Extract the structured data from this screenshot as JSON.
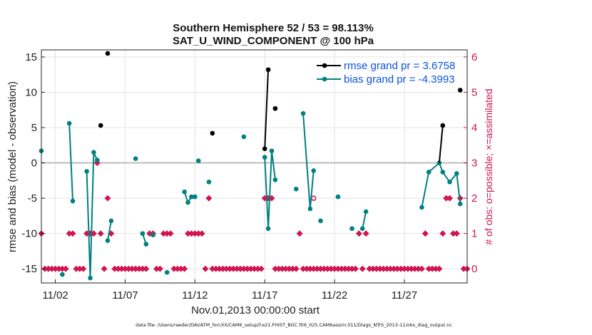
{
  "chart_data": {
    "type": "line",
    "title": "Southern Hemisphere 52 / 53 = 98.113%",
    "subtitle": "SAT_U_WIND_COMPONENT @ 100 hPa",
    "xlabel": "Nov.01,2013 00:00:00 start",
    "ylabel": "rmse and bias (model - observation)",
    "y2label": "# of obs: o=possible; ×=assimilated",
    "xlim": [
      0.5,
      31.0
    ],
    "ylim": [
      -17,
      16
    ],
    "y2lim": [
      -0.4,
      6.2
    ],
    "x_ticks": [
      1.5,
      6.5,
      11.5,
      16.5,
      21.5,
      26.5
    ],
    "x_tick_labels": [
      "11/02",
      "11/07",
      "11/12",
      "11/17",
      "11/22",
      "11/27"
    ],
    "y_ticks": [
      -15,
      -10,
      -5,
      0,
      5,
      10,
      15
    ],
    "y2_ticks": [
      0,
      1,
      2,
      3,
      4,
      5,
      6
    ],
    "grid": true,
    "legend_position": "top-right",
    "zero_line": 0,
    "footer": "data file: /Users/raeder/DAI/ATM_forcXX/CAM6_setup/f.e21.FHIST_BGC.f09_025.CAM6assim.011/Diags_NTrS_2013-11/obs_diag_output.nc",
    "colors": {
      "rmse": "#000000",
      "bias": "#008080",
      "obs": "#d1154f",
      "grid": "#e4e4e4",
      "zero": "#bdbdbd"
    },
    "series": [
      {
        "name": "rmse grand pr = 3.6758",
        "color": "#000000",
        "points": [
          [
            4.75,
            5.3
          ],
          [
            5.25,
            15.5
          ],
          [
            12.75,
            4.2
          ],
          [
            16.5,
            2.0
          ],
          [
            16.75,
            13.2
          ],
          [
            17.25,
            7.7
          ],
          [
            29.25,
            5.3
          ],
          [
            30.5,
            10.3
          ]
        ],
        "lines": [
          [
            [
              16.5,
              2.0
            ],
            [
              16.75,
              13.2
            ]
          ],
          [
            [
              29.0,
              0.0
            ],
            [
              29.25,
              5.3
            ]
          ]
        ]
      },
      {
        "name": "bias grand pr = -4.3993",
        "color": "#008080",
        "points": [
          [
            0.5,
            1.7
          ],
          [
            2.0,
            -15.8
          ],
          [
            2.5,
            5.6
          ],
          [
            2.75,
            -5.4
          ],
          [
            3.75,
            -1.2
          ],
          [
            4.0,
            -16.3
          ],
          [
            4.25,
            1.5
          ],
          [
            4.5,
            0.4
          ],
          [
            5.25,
            -11.0
          ],
          [
            5.5,
            -8.2
          ],
          [
            7.25,
            0.6
          ],
          [
            7.75,
            -10.0
          ],
          [
            8.0,
            -11.5
          ],
          [
            8.5,
            -10.2
          ],
          [
            9.5,
            -15.5
          ],
          [
            10.75,
            -4.1
          ],
          [
            11.0,
            -5.6
          ],
          [
            11.25,
            -4.8
          ],
          [
            11.5,
            -4.8
          ],
          [
            11.75,
            0.3
          ],
          [
            12.5,
            -2.7
          ],
          [
            15.0,
            3.7
          ],
          [
            16.5,
            0.8
          ],
          [
            16.75,
            -9.3
          ],
          [
            17.0,
            1.7
          ],
          [
            17.25,
            -2.4
          ],
          [
            18.75,
            -3.7
          ],
          [
            19.25,
            7.0
          ],
          [
            19.75,
            -6.5
          ],
          [
            20.0,
            -1.1
          ],
          [
            20.5,
            -8.2
          ],
          [
            21.75,
            -4.8
          ],
          [
            22.75,
            -9.3
          ],
          [
            23.5,
            -9.3
          ],
          [
            23.75,
            -6.9
          ],
          [
            27.75,
            -6.3
          ],
          [
            28.25,
            -1.3
          ],
          [
            29.0,
            0.0
          ],
          [
            29.25,
            -1.3
          ],
          [
            29.75,
            -2.7
          ],
          [
            30.25,
            -1.5
          ],
          [
            30.5,
            -5.8
          ]
        ],
        "lines": [
          [
            [
              2.5,
              5.6
            ],
            [
              2.75,
              -5.4
            ]
          ],
          [
            [
              3.75,
              -1.2
            ],
            [
              4.0,
              -16.3
            ],
            [
              4.25,
              1.5
            ],
            [
              4.5,
              0.4
            ]
          ],
          [
            [
              5.25,
              -11.0
            ],
            [
              5.5,
              -8.2
            ]
          ],
          [
            [
              7.75,
              -10.0
            ],
            [
              8.0,
              -11.5
            ]
          ],
          [
            [
              10.75,
              -4.1
            ],
            [
              11.0,
              -5.6
            ],
            [
              11.25,
              -4.8
            ]
          ],
          [
            [
              16.5,
              0.8
            ],
            [
              16.75,
              -9.3
            ],
            [
              17.0,
              1.7
            ],
            [
              17.25,
              -2.4
            ]
          ],
          [
            [
              19.25,
              7.0
            ],
            [
              19.75,
              -6.5
            ],
            [
              20.0,
              -1.1
            ]
          ],
          [
            [
              23.5,
              -9.3
            ],
            [
              23.75,
              -6.9
            ]
          ],
          [
            [
              27.75,
              -6.3
            ],
            [
              28.25,
              -1.3
            ],
            [
              29.0,
              0.0
            ],
            [
              29.25,
              -1.3
            ],
            [
              29.75,
              -2.7
            ],
            [
              30.25,
              -1.5
            ],
            [
              30.5,
              -5.8
            ]
          ]
        ]
      },
      {
        "name": "assimilated obs count",
        "axis": "right",
        "marker": "diamond",
        "color": "#d1154f",
        "x": [
          0.5,
          0.75,
          1.0,
          1.25,
          1.5,
          1.75,
          2.0,
          2.25,
          2.5,
          2.75,
          3.0,
          3.25,
          3.5,
          3.75,
          4.0,
          4.25,
          4.5,
          4.75,
          5.0,
          5.25,
          5.5,
          5.75,
          6.0,
          6.25,
          6.5,
          6.75,
          7.0,
          7.25,
          7.5,
          7.75,
          8.0,
          8.25,
          8.5,
          8.75,
          9.0,
          9.25,
          9.5,
          9.75,
          10.0,
          10.25,
          10.5,
          10.75,
          11.0,
          11.25,
          11.5,
          11.75,
          12.0,
          12.25,
          12.5,
          12.75,
          13.0,
          13.25,
          13.5,
          13.75,
          14.0,
          14.25,
          14.5,
          14.75,
          15.0,
          15.25,
          15.5,
          15.75,
          16.0,
          16.25,
          16.5,
          16.75,
          17.0,
          17.25,
          17.5,
          17.75,
          18.0,
          18.25,
          18.5,
          18.75,
          19.0,
          19.25,
          19.5,
          19.75,
          20.0,
          20.25,
          20.5,
          20.75,
          21.0,
          21.25,
          21.5,
          21.75,
          22.0,
          22.25,
          22.5,
          22.75,
          23.0,
          23.25,
          23.5,
          23.75,
          24.0,
          24.25,
          24.5,
          24.75,
          25.0,
          25.25,
          25.5,
          25.75,
          26.0,
          26.25,
          26.5,
          26.75,
          27.0,
          27.25,
          27.5,
          27.75,
          28.0,
          28.25,
          28.5,
          28.75,
          29.0,
          29.25,
          29.5,
          29.75,
          30.0,
          30.25,
          30.5,
          30.75,
          31.0
        ],
        "values": [
          1,
          0,
          0,
          0,
          0,
          0,
          0,
          0,
          1,
          1,
          0,
          0,
          0,
          1,
          1,
          1,
          3,
          1,
          0,
          2,
          1,
          0,
          0,
          0,
          0,
          0,
          0,
          0,
          0,
          0,
          0,
          1,
          1,
          0,
          0,
          1,
          1,
          1,
          0,
          0,
          0,
          0,
          1,
          1,
          1,
          1,
          1,
          0,
          2,
          0,
          0,
          0,
          0,
          0,
          0,
          0,
          0,
          0,
          0,
          0,
          0,
          0,
          0,
          0,
          2,
          2,
          2,
          0,
          0,
          0,
          0,
          0,
          0,
          0,
          1,
          0,
          0,
          0,
          0,
          0,
          0,
          0,
          0,
          0,
          0,
          0,
          0,
          0,
          0,
          0,
          0,
          1,
          0,
          1,
          0,
          0,
          0,
          0,
          0,
          0,
          0,
          0,
          0,
          0,
          0,
          0,
          0,
          0,
          0,
          0,
          1,
          0,
          0,
          0,
          0,
          1,
          2,
          2,
          1,
          1,
          2,
          0,
          0
        ]
      },
      {
        "name": "possible obs count",
        "axis": "right",
        "marker": "circle",
        "color": "#d1154f",
        "x": [
          20.0
        ],
        "values": [
          2
        ]
      }
    ]
  }
}
